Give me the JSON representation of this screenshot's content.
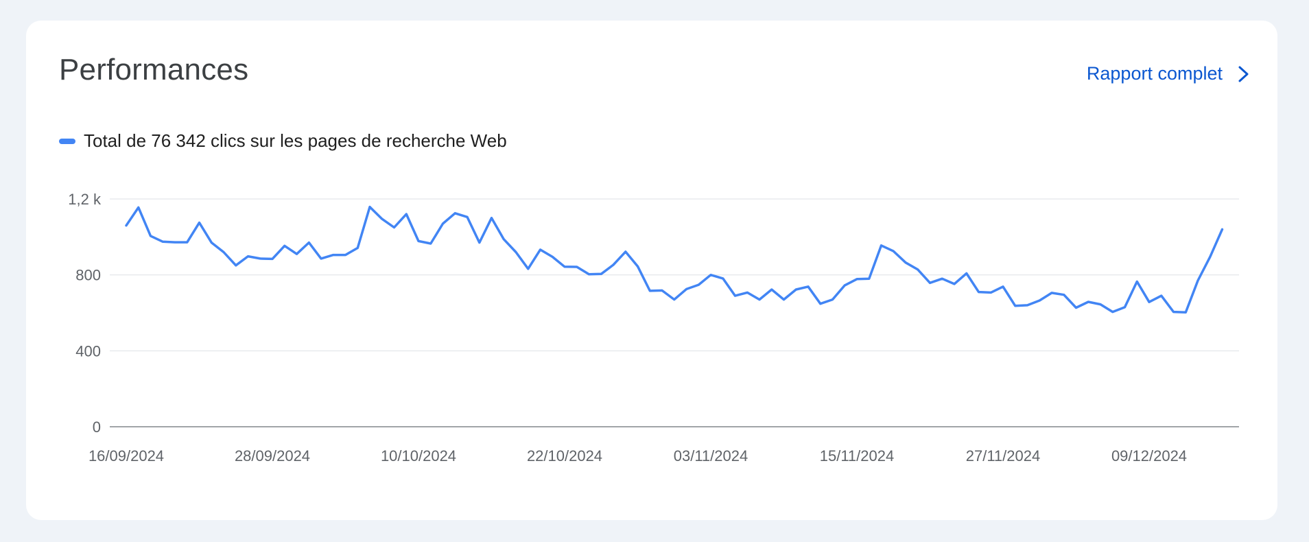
{
  "card": {
    "title": "Performances",
    "report_link_label": "Rapport complet"
  },
  "legend": {
    "label": "Total de 76 342 clics sur les pages de recherche Web",
    "color": "#4285f4"
  },
  "chart_data": {
    "type": "line",
    "title": "",
    "xlabel": "",
    "ylabel": "",
    "ylim": [
      0,
      1200
    ],
    "grid": true,
    "legend_position": "top-left",
    "y_ticks": [
      {
        "value": 0,
        "label": "0"
      },
      {
        "value": 400,
        "label": "400"
      },
      {
        "value": 800,
        "label": "800"
      },
      {
        "value": 1200,
        "label": "1,2 k"
      }
    ],
    "x_ticks": [
      "16/09/2024",
      "28/09/2024",
      "10/10/2024",
      "22/10/2024",
      "03/11/2024",
      "15/11/2024",
      "27/11/2024",
      "09/12/2024"
    ],
    "x_start": "16/09/2024",
    "series": [
      {
        "color": "#4285f4",
        "values": [
          1060,
          1155,
          1005,
          975,
          972,
          972,
          1075,
          970,
          920,
          850,
          898,
          886,
          884,
          953,
          910,
          970,
          886,
          905,
          905,
          942,
          1158,
          1095,
          1050,
          1120,
          978,
          965,
          1070,
          1125,
          1105,
          970,
          1100,
          988,
          920,
          832,
          933,
          895,
          843,
          842,
          803,
          805,
          853,
          922,
          845,
          716,
          718,
          670,
          725,
          748,
          800,
          781,
          690,
          707,
          670,
          723,
          670,
          723,
          738,
          648,
          670,
          745,
          778,
          780,
          955,
          925,
          865,
          828,
          758,
          780,
          752,
          808,
          710,
          707,
          738,
          637,
          640,
          665,
          705,
          695,
          627,
          658,
          645,
          605,
          630,
          765,
          657,
          690,
          605,
          603,
          770,
          895,
          1040
        ]
      }
    ]
  }
}
